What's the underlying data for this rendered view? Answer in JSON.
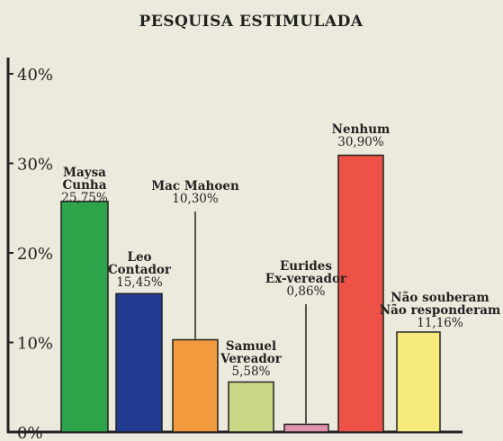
{
  "chart_data": {
    "type": "bar",
    "title": "PESQUISA ESTIMULADA",
    "ylim": [
      0,
      40
    ],
    "yticks": [
      "0%",
      "10%",
      "20%",
      "30%",
      "40%"
    ],
    "ytick_values": [
      0,
      10,
      20,
      30,
      40
    ],
    "grid": false,
    "bars": [
      {
        "label_lines": [
          "Maysa",
          "Cunha"
        ],
        "value": 25.75,
        "value_label": "25,75%",
        "color": "#2ea44a"
      },
      {
        "label_lines": [
          "Leo",
          "Contador"
        ],
        "value": 15.45,
        "value_label": "15,45%",
        "color": "#223a8f"
      },
      {
        "label_lines": [
          "Mac Mahoen"
        ],
        "value": 10.3,
        "value_label": "10,30%",
        "color": "#f29b3e"
      },
      {
        "label_lines": [
          "Samuel",
          "Vereador"
        ],
        "value": 5.58,
        "value_label": "5,58%",
        "color": "#c8d886"
      },
      {
        "label_lines": [
          "Eurides",
          "Ex-vereador"
        ],
        "value": 0.86,
        "value_label": "0,86%",
        "color": "#e092aa"
      },
      {
        "label_lines": [
          "Nenhum"
        ],
        "value": 30.9,
        "value_label": "30,90%",
        "color": "#ee5246"
      },
      {
        "label_lines": [
          "Não souberam",
          "Não responderam"
        ],
        "value": 11.16,
        "value_label": "11,16%",
        "color": "#f7ea7c"
      }
    ]
  }
}
